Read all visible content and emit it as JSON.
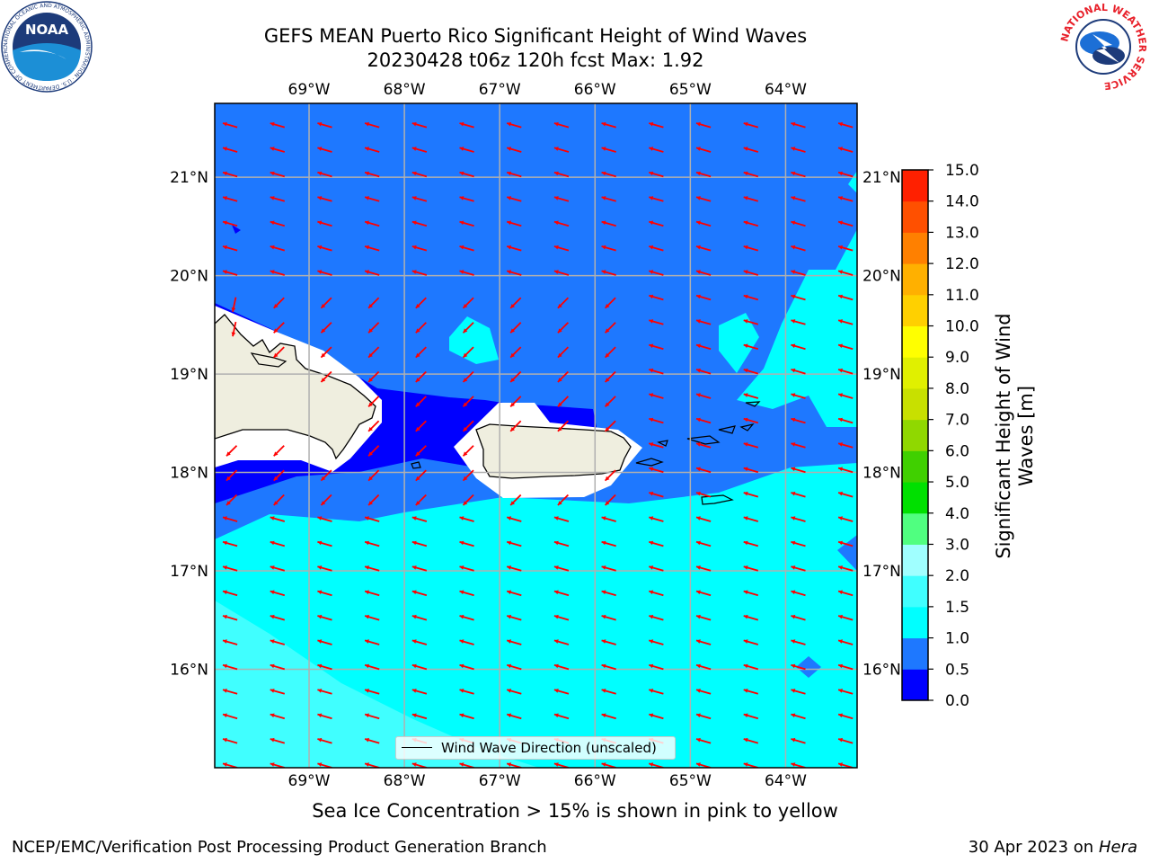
{
  "header": {
    "title_line1": "GEFS MEAN Puerto Rico Significant Height of Wind Waves",
    "title_line2": "20230428 t06z 120h fcst   Max: 1.92"
  },
  "logos": {
    "left": {
      "name": "noaa-logo",
      "text": "NOAA",
      "ring_text": "NATIONAL OCEANIC AND ATMOSPHERIC ADMINISTRATION · U.S. DEPARTMENT OF COMMERCE"
    },
    "right": {
      "name": "nws-logo",
      "ring_text": "NATIONAL WEATHER SERVICE"
    }
  },
  "map": {
    "lon_labels": [
      "69°W",
      "68°W",
      "67°W",
      "66°W",
      "65°W",
      "64°W"
    ],
    "lat_labels": [
      "21°N",
      "20°N",
      "19°N",
      "18°N",
      "17°N",
      "16°N"
    ],
    "lon_values": [
      -69,
      -68,
      -67,
      -66,
      -65,
      -64
    ],
    "lat_values": [
      21,
      20,
      19,
      18,
      17,
      16
    ],
    "extent": {
      "lon_min": -69.99,
      "lon_max": -63.25,
      "lat_min": 15.0,
      "lat_max": 21.75
    },
    "gridlines": true,
    "arrow_direction": "toward west-northwest",
    "arrow_color": "#ff0000",
    "land_color": "#efeedf",
    "legend_label": "Wind Wave Direction (unscaled)"
  },
  "colorbar": {
    "label": "Significant Height of Wind Waves [m]",
    "label_line1": "Significant Height of Wind",
    "label_line2": "Waves [m]",
    "ticks": [
      "0.0",
      "0.5",
      "1.0",
      "1.5",
      "2.0",
      "3.0",
      "4.0",
      "5.0",
      "6.0",
      "7.0",
      "8.0",
      "9.0",
      "10.0",
      "11.0",
      "12.0",
      "13.0",
      "14.0",
      "15.0"
    ],
    "colors": [
      "#0000ff",
      "#1e78ff",
      "#00ffff",
      "#40ffff",
      "#a0ffff",
      "#50ff80",
      "#00e000",
      "#40d000",
      "#90d800",
      "#c8e000",
      "#e0f000",
      "#ffff00",
      "#ffd000",
      "#ffb000",
      "#ff8000",
      "#ff5000",
      "#ff2000"
    ]
  },
  "captions": {
    "ice_note": "Sea Ice Concentration > 15% is shown in pink to yellow",
    "footer_left": "NCEP/EMC/Verification Post Processing Product Generation Branch",
    "footer_right_prefix": "30 Apr 2023 on ",
    "footer_right_host": "Hera"
  }
}
